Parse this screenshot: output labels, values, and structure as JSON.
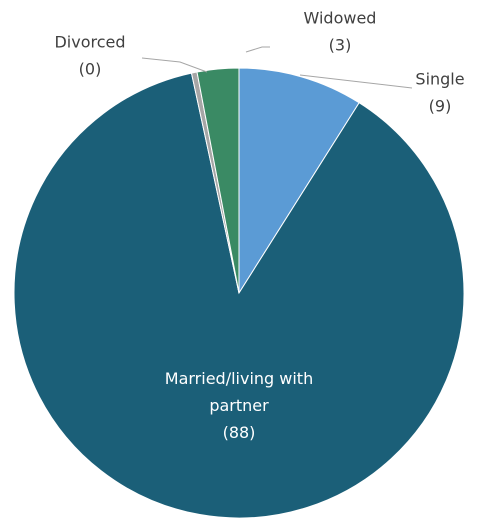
{
  "chart_data": {
    "type": "pie",
    "categories": [
      "Single",
      "Married/living with partner",
      "Divorced",
      "Widowed"
    ],
    "values": [
      9,
      88,
      0.4,
      3
    ],
    "value_labels": [
      "(9)",
      "(88)",
      "(0)",
      "(3)"
    ],
    "colors": [
      "#5b9bd5",
      "#1b5f78",
      "#a6a6a6",
      "#3a8a64"
    ]
  }
}
